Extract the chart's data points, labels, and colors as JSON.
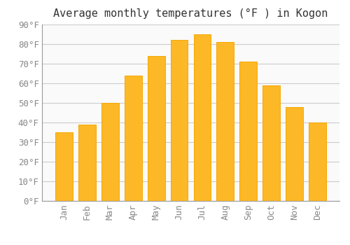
{
  "title": "Average monthly temperatures (°F ) in Kogon",
  "months": [
    "Jan",
    "Feb",
    "Mar",
    "Apr",
    "May",
    "Jun",
    "Jul",
    "Aug",
    "Sep",
    "Oct",
    "Nov",
    "Dec"
  ],
  "values": [
    35,
    39,
    50,
    64,
    74,
    82,
    85,
    81,
    71,
    59,
    48,
    40
  ],
  "bar_color": "#FDB827",
  "bar_edge_color": "#F5A800",
  "background_color": "#FFFFFF",
  "plot_background_color": "#FAFAFA",
  "grid_color": "#CCCCCC",
  "ylim": [
    0,
    90
  ],
  "yticks": [
    0,
    10,
    20,
    30,
    40,
    50,
    60,
    70,
    80,
    90
  ],
  "title_fontsize": 11,
  "tick_fontsize": 9,
  "ylabel_suffix": "°F",
  "bar_width": 0.75
}
